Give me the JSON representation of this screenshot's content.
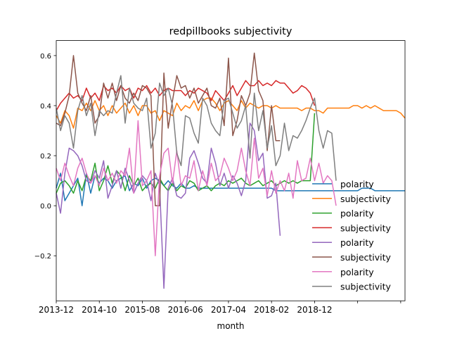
{
  "chart_data": {
    "type": "line",
    "title": "redpillbooks subjectivity",
    "xlabel": "month",
    "ylabel": "",
    "x_tick_labels": [
      "2013-12",
      "2014-10",
      "2015-08",
      "2016-06",
      "2017-04",
      "2018-02",
      "2018-12",
      "",
      ""
    ],
    "x_tick_months": [
      0,
      10,
      20,
      30,
      40,
      50,
      60,
      70,
      80
    ],
    "xlim": [
      0,
      81
    ],
    "ylim": [
      -0.38,
      0.66
    ],
    "y_ticks": [
      -0.2,
      0.0,
      0.2,
      0.4,
      0.6
    ],
    "y_tick_labels": [
      "−0.2",
      "0.0",
      "0.2",
      "0.4",
      "0.6"
    ],
    "grid": false,
    "legend_position": "lower-right",
    "series": [
      {
        "name": "polarity",
        "color": "#1f77b4",
        "x": [
          0,
          1,
          2,
          3,
          4,
          5,
          6,
          7,
          8,
          9,
          10,
          11,
          12,
          13,
          14,
          15,
          16,
          17,
          18,
          19,
          20,
          21,
          22,
          23,
          24,
          25,
          26,
          27,
          28,
          29,
          30,
          31,
          32,
          33,
          34,
          35,
          36,
          37,
          38,
          39,
          40,
          41,
          42,
          43,
          44,
          45,
          46,
          47,
          48,
          49,
          50,
          51,
          52,
          53,
          54,
          55,
          56,
          57,
          58,
          59,
          60,
          61,
          62,
          63,
          64,
          65,
          66,
          67,
          68,
          69,
          70,
          71,
          72,
          73,
          74,
          75,
          76,
          77,
          78,
          79,
          80,
          81
        ],
        "y": [
          0.07,
          0.13,
          0.02,
          0.05,
          0.08,
          0.11,
          0.0,
          0.13,
          0.05,
          0.12,
          0.09,
          0.11,
          0.1,
          0.07,
          0.1,
          0.11,
          0.12,
          0.06,
          0.09,
          0.08,
          0.11,
          0.07,
          0.1,
          0.11,
          0.1,
          0.08,
          0.1,
          0.08,
          0.07,
          0.09,
          0.07,
          0.07,
          0.08,
          0.07,
          0.07,
          0.07,
          0.07,
          0.07,
          0.07,
          0.07,
          0.07,
          0.07,
          0.07,
          0.07,
          0.07,
          0.07,
          0.07,
          0.07,
          0.07,
          0.07,
          0.07,
          0.06,
          0.06,
          0.06,
          0.06,
          0.06,
          0.06,
          0.06,
          0.06,
          0.06,
          0.06,
          0.06,
          0.06,
          0.06,
          0.06,
          0.06,
          0.06,
          0.06,
          0.06,
          0.06,
          0.06,
          0.07,
          0.07,
          0.07,
          0.06,
          0.06,
          0.06,
          0.06,
          0.06,
          0.06,
          0.06,
          0.06
        ]
      },
      {
        "name": "subjectivity",
        "color": "#ff7f0e",
        "x": [
          0,
          1,
          2,
          3,
          4,
          5,
          6,
          7,
          8,
          9,
          10,
          11,
          12,
          13,
          14,
          15,
          16,
          17,
          18,
          19,
          20,
          21,
          22,
          23,
          24,
          25,
          26,
          27,
          28,
          29,
          30,
          31,
          32,
          33,
          34,
          35,
          36,
          37,
          38,
          39,
          40,
          41,
          42,
          43,
          44,
          45,
          46,
          47,
          48,
          49,
          50,
          51,
          52,
          53,
          54,
          55,
          56,
          57,
          58,
          59,
          60,
          61,
          62,
          63,
          64,
          65,
          66,
          67,
          68,
          69,
          70,
          71,
          72,
          73,
          74,
          75,
          76,
          77,
          78,
          79,
          80,
          81
        ],
        "y": [
          0.36,
          0.33,
          0.38,
          0.36,
          0.31,
          0.39,
          0.38,
          0.41,
          0.38,
          0.42,
          0.38,
          0.4,
          0.36,
          0.4,
          0.37,
          0.39,
          0.41,
          0.37,
          0.4,
          0.36,
          0.4,
          0.4,
          0.37,
          0.38,
          0.34,
          0.38,
          0.37,
          0.36,
          0.41,
          0.38,
          0.4,
          0.39,
          0.42,
          0.38,
          0.42,
          0.43,
          0.43,
          0.41,
          0.38,
          0.41,
          0.42,
          0.4,
          0.38,
          0.42,
          0.39,
          0.41,
          0.4,
          0.39,
          0.4,
          0.4,
          0.39,
          0.4,
          0.39,
          0.39,
          0.39,
          0.39,
          0.39,
          0.38,
          0.39,
          0.39,
          0.38,
          0.38,
          0.37,
          0.39,
          0.39,
          0.39,
          0.39,
          0.39,
          0.39,
          0.4,
          0.4,
          0.39,
          0.4,
          0.39,
          0.4,
          0.39,
          0.38,
          0.38,
          0.38,
          0.38,
          0.37,
          0.35
        ]
      },
      {
        "name": "polarity",
        "color": "#2ca02c",
        "x": [
          0,
          1,
          2,
          3,
          4,
          5,
          6,
          7,
          8,
          9,
          10,
          11,
          12,
          13,
          14,
          15,
          16,
          17,
          18,
          19,
          20,
          21,
          22,
          23,
          24,
          25,
          26,
          27,
          28,
          29,
          30,
          31,
          32,
          33,
          34,
          35,
          36,
          37,
          38,
          39,
          40,
          41,
          42,
          43,
          44,
          45,
          46,
          47,
          48,
          49,
          50,
          51,
          52,
          53,
          54,
          55,
          56,
          57,
          58,
          59,
          60
        ],
        "y": [
          0.05,
          0.09,
          0.1,
          0.08,
          0.05,
          0.1,
          0.06,
          0.12,
          0.1,
          0.17,
          0.06,
          0.1,
          0.16,
          0.09,
          0.14,
          0.12,
          0.06,
          0.12,
          0.08,
          0.11,
          0.06,
          0.08,
          0.09,
          0.07,
          0.11,
          0.08,
          0.06,
          0.09,
          0.06,
          0.08,
          0.07,
          0.1,
          0.09,
          0.06,
          0.07,
          0.08,
          0.06,
          0.08,
          0.09,
          0.08,
          0.1,
          0.09,
          0.1,
          0.11,
          0.09,
          0.08,
          0.09,
          0.1,
          0.08,
          0.09,
          0.1,
          0.08,
          0.09,
          0.1,
          0.09,
          0.1,
          0.09,
          0.1,
          0.1,
          0.1,
          0.37
        ]
      },
      {
        "name": "subjectivity",
        "color": "#d62728",
        "x": [
          0,
          1,
          2,
          3,
          4,
          5,
          6,
          7,
          8,
          9,
          10,
          11,
          12,
          13,
          14,
          15,
          16,
          17,
          18,
          19,
          20,
          21,
          22,
          23,
          24,
          25,
          26,
          27,
          28,
          29,
          30,
          31,
          32,
          33,
          34,
          35,
          36,
          37,
          38,
          39,
          40,
          41,
          42,
          43,
          44,
          45,
          46,
          47,
          48,
          49,
          50,
          51,
          52,
          53,
          54,
          55,
          56,
          57,
          58,
          59,
          60
        ],
        "y": [
          0.38,
          0.41,
          0.43,
          0.45,
          0.43,
          0.44,
          0.42,
          0.47,
          0.43,
          0.45,
          0.42,
          0.48,
          0.46,
          0.47,
          0.45,
          0.48,
          0.46,
          0.47,
          0.43,
          0.47,
          0.46,
          0.48,
          0.45,
          0.47,
          0.44,
          0.46,
          0.47,
          0.46,
          0.46,
          0.46,
          0.44,
          0.46,
          0.45,
          0.47,
          0.46,
          0.45,
          0.42,
          0.46,
          0.44,
          0.42,
          0.45,
          0.48,
          0.44,
          0.47,
          0.5,
          0.48,
          0.48,
          0.5,
          0.48,
          0.49,
          0.48,
          0.5,
          0.49,
          0.49,
          0.47,
          0.45,
          0.46,
          0.48,
          0.47,
          0.45,
          0.4
        ]
      },
      {
        "name": "polarity",
        "color": "#9467bd",
        "x": [
          0,
          1,
          2,
          3,
          4,
          5,
          6,
          7,
          8,
          9,
          10,
          11,
          12,
          13,
          14,
          15,
          16,
          17,
          18,
          19,
          20,
          21,
          22,
          23,
          24,
          25,
          26,
          27,
          28,
          29,
          30,
          31,
          32,
          33,
          34,
          35,
          36,
          37,
          38,
          39,
          40,
          41,
          42,
          43,
          44,
          45,
          46,
          47,
          48,
          49,
          50,
          51,
          52
        ],
        "y": [
          0.05,
          -0.03,
          0.13,
          0.23,
          0.22,
          0.2,
          0.16,
          0.1,
          0.09,
          0.14,
          0.11,
          0.18,
          0.03,
          0.08,
          0.14,
          0.07,
          0.15,
          0.1,
          0.05,
          0.09,
          0.12,
          0.1,
          0.02,
          0.13,
          0.08,
          -0.33,
          0.07,
          0.11,
          0.04,
          0.03,
          0.05,
          0.19,
          0.22,
          0.17,
          0.11,
          0.09,
          0.23,
          0.17,
          0.08,
          0.13,
          0.07,
          0.12,
          0.09,
          0.04,
          0.1,
          0.33,
          0.3,
          0.18,
          0.21,
          0.03,
          0.04,
          0.09,
          -0.12
        ]
      },
      {
        "name": "subjectivity",
        "color": "#8c564b",
        "x": [
          0,
          1,
          2,
          3,
          4,
          5,
          6,
          7,
          8,
          9,
          10,
          11,
          12,
          13,
          14,
          15,
          16,
          17,
          18,
          19,
          20,
          21,
          22,
          23,
          24,
          25,
          26,
          27,
          28,
          29,
          30,
          31,
          32,
          33,
          34,
          35,
          36,
          37,
          38,
          39,
          40,
          41,
          42,
          43,
          44,
          45,
          46,
          47,
          48,
          49,
          50,
          51,
          52
        ],
        "y": [
          0.33,
          0.32,
          0.37,
          0.44,
          0.6,
          0.45,
          0.41,
          0.38,
          0.44,
          0.33,
          0.36,
          0.49,
          0.43,
          0.49,
          0.42,
          0.48,
          0.43,
          0.41,
          0.45,
          0.42,
          0.48,
          0.47,
          0.44,
          0.0,
          0.0,
          0.53,
          0.31,
          0.42,
          0.52,
          0.47,
          0.48,
          0.43,
          0.47,
          0.41,
          0.44,
          0.47,
          0.4,
          0.39,
          0.43,
          0.32,
          0.59,
          0.28,
          0.34,
          0.44,
          0.4,
          0.45,
          0.61,
          0.46,
          0.42,
          0.22,
          0.4,
          0.26,
          0.26
        ]
      },
      {
        "name": "polarity",
        "color": "#e377c2",
        "x": [
          0,
          1,
          2,
          3,
          4,
          5,
          6,
          7,
          8,
          9,
          10,
          11,
          12,
          13,
          14,
          15,
          16,
          17,
          18,
          19,
          20,
          21,
          22,
          23,
          24,
          25,
          26,
          27,
          28,
          29,
          30,
          31,
          32,
          33,
          34,
          35,
          36,
          37,
          38,
          39,
          40,
          41,
          42,
          43,
          44,
          45,
          46,
          47,
          48,
          49,
          50,
          51,
          52,
          53,
          54,
          55,
          56,
          57,
          58,
          59,
          60,
          61,
          62,
          63,
          64,
          65
        ],
        "y": [
          0.15,
          0.1,
          0.17,
          0.12,
          0.08,
          0.15,
          0.19,
          0.13,
          0.09,
          0.12,
          0.08,
          0.15,
          0.1,
          0.13,
          0.09,
          0.14,
          0.12,
          0.23,
          0.05,
          0.34,
          0.08,
          0.1,
          0.14,
          -0.2,
          0.12,
          0.21,
          0.23,
          0.09,
          0.22,
          0.08,
          0.12,
          0.11,
          0.18,
          0.06,
          0.14,
          0.08,
          0.17,
          0.1,
          0.12,
          0.19,
          0.15,
          0.1,
          0.14,
          0.23,
          0.14,
          0.08,
          0.27,
          0.11,
          0.15,
          0.04,
          0.14,
          0.05,
          0.1,
          0.06,
          0.13,
          0.03,
          0.18,
          0.1,
          0.11,
          0.19,
          0.1,
          0.17,
          0.09,
          0.12,
          0.1,
          0.0
        ]
      },
      {
        "name": "subjectivity",
        "color": "#7f7f7f",
        "x": [
          0,
          1,
          2,
          3,
          4,
          5,
          6,
          7,
          8,
          9,
          10,
          11,
          12,
          13,
          14,
          15,
          16,
          17,
          18,
          19,
          20,
          21,
          22,
          23,
          24,
          25,
          26,
          27,
          28,
          29,
          30,
          31,
          32,
          33,
          34,
          35,
          36,
          37,
          38,
          39,
          40,
          41,
          42,
          43,
          44,
          45,
          46,
          47,
          48,
          49,
          50,
          51,
          52,
          53,
          54,
          55,
          56,
          57,
          58,
          59,
          60,
          61,
          62,
          63,
          64,
          65
        ],
        "y": [
          0.39,
          0.3,
          0.36,
          0.33,
          0.23,
          0.38,
          0.44,
          0.36,
          0.41,
          0.28,
          0.38,
          0.36,
          0.38,
          0.37,
          0.45,
          0.52,
          0.33,
          0.47,
          0.41,
          0.39,
          0.38,
          0.43,
          0.23,
          0.29,
          0.49,
          0.44,
          0.47,
          0.4,
          0.21,
          0.16,
          0.36,
          0.35,
          0.29,
          0.25,
          0.43,
          0.4,
          0.33,
          0.3,
          0.28,
          0.42,
          0.43,
          0.37,
          0.31,
          0.34,
          0.4,
          0.19,
          0.45,
          0.3,
          0.38,
          0.23,
          0.32,
          0.16,
          0.2,
          0.33,
          0.22,
          0.28,
          0.27,
          0.3,
          0.34,
          0.39,
          0.43,
          0.3,
          0.23,
          0.3,
          0.29,
          0.1
        ]
      }
    ]
  }
}
